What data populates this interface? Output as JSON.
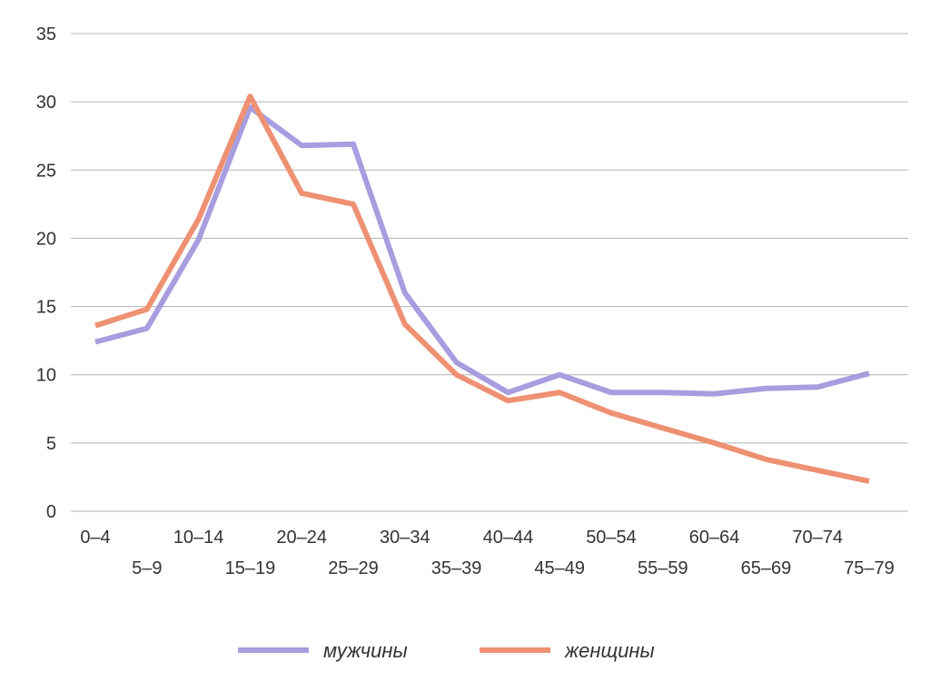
{
  "chart_data": {
    "type": "line",
    "categories": [
      "0–4",
      "5–9",
      "10–14",
      "15–19",
      "20–24",
      "25–29",
      "30–34",
      "35–39",
      "40–44",
      "45–49",
      "50–54",
      "55–59",
      "60–64",
      "65–69",
      "70–74",
      "75–79"
    ],
    "yticks": [
      "0",
      "5",
      "10",
      "15",
      "20",
      "25",
      "30",
      "35"
    ],
    "ylim": [
      0,
      35
    ],
    "grid": true,
    "legend_position": "bottom",
    "series": [
      {
        "name": "мужчины",
        "color": "#a79ddf",
        "values": [
          12.4,
          13.4,
          19.9,
          29.6,
          26.8,
          26.9,
          16.0,
          10.9,
          8.7,
          10.0,
          8.7,
          8.7,
          8.6,
          9.0,
          9.1,
          10.1
        ]
      },
      {
        "name": "женщины",
        "color": "#ee9173",
        "values": [
          13.6,
          14.8,
          21.4,
          30.4,
          23.3,
          22.5,
          13.7,
          10.0,
          8.1,
          8.7,
          7.2,
          6.1,
          5.0,
          3.8,
          3.0,
          2.2
        ]
      }
    ]
  }
}
